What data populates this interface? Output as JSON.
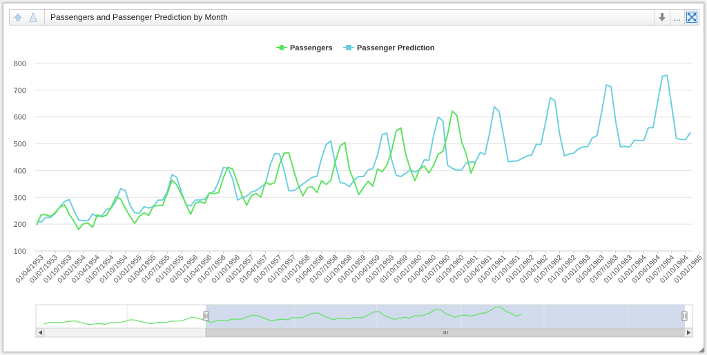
{
  "window": {
    "title": "Passengers and Passenger Prediction by Month",
    "up_icon": "arrow-up-icon",
    "filter_icon": "funnel-icon",
    "download_icon": "download-icon",
    "more_label": "...",
    "maximize_icon": "maximize-icon"
  },
  "colors": {
    "passengers": "#5de35d",
    "prediction": "#6dcfe3",
    "navigator_fill": "#cfd9ea"
  },
  "chart_data": {
    "type": "line",
    "title": "",
    "legend": {
      "placement": "top-center",
      "items": [
        "Passengers",
        "Passenger Prediction"
      ]
    },
    "y_ticks": [
      100,
      200,
      300,
      400,
      500,
      600,
      700,
      800
    ],
    "ylim": [
      100,
      800
    ],
    "x_tick_labels": [
      "01/04/1953",
      "01/07/1953",
      "01/10/1953",
      "01/01/1954",
      "01/04/1954",
      "01/07/1954",
      "01/10/1954",
      "01/01/1955",
      "01/04/1955",
      "01/07/1955",
      "01/10/1955",
      "01/01/1956",
      "01/04/1956",
      "01/07/1956",
      "01/10/1956",
      "01/01/1957",
      "01/04/1957",
      "01/07/1957",
      "01/10/1957",
      "01/01/1958",
      "01/04/1958",
      "01/07/1958",
      "01/10/1958",
      "01/01/1959",
      "01/04/1959",
      "01/07/1959",
      "01/10/1959",
      "01/01/1960",
      "01/04/1960",
      "01/07/1960",
      "01/10/1960",
      "01/01/1961",
      "01/04/1961",
      "01/07/1961",
      "01/10/1961",
      "01/01/1962",
      "01/04/1962",
      "01/07/1962",
      "01/10/1962",
      "01/01/1963",
      "01/04/1963",
      "01/07/1963",
      "01/10/1963",
      "01/01/1964",
      "01/04/1964",
      "01/07/1964",
      "01/10/1964",
      "01/01/1965"
    ],
    "x_start": "03/1953",
    "series": [
      {
        "name": "Passengers",
        "color": "#5de35d",
        "values": [
          196,
          236,
          235,
          229,
          243,
          264,
          272,
          237,
          211,
          180,
          201,
          204,
          188,
          235,
          227,
          234,
          264,
          302,
          293,
          259,
          229,
          203,
          229,
          242,
          233,
          267,
          269,
          270,
          315,
          364,
          347,
          312,
          274,
          237,
          278,
          284,
          277,
          317,
          313,
          318,
          374,
          413,
          405,
          355,
          306,
          271,
          306,
          315,
          301,
          356,
          348,
          355,
          422,
          465,
          467,
          404,
          347,
          305,
          336,
          340,
          318,
          362,
          348,
          363,
          435,
          491,
          505,
          404,
          359,
          310,
          337,
          360,
          342,
          406,
          396,
          420,
          472,
          548,
          559,
          463,
          407,
          362,
          405,
          417,
          391,
          419,
          461,
          472,
          535,
          622,
          606,
          508,
          461,
          390,
          432
        ]
      },
      {
        "name": "Passenger Prediction",
        "color": "#6dcfe3",
        "values": [
          210,
          208,
          225,
          225,
          240,
          265,
          285,
          292,
          250,
          215,
          213,
          212,
          238,
          228,
          232,
          255,
          260,
          287,
          333,
          325,
          270,
          242,
          240,
          265,
          260,
          265,
          290,
          290,
          322,
          385,
          375,
          320,
          272,
          268,
          290,
          290,
          293,
          315,
          322,
          360,
          412,
          408,
          368,
          290,
          298,
          305,
          320,
          325,
          338,
          350,
          420,
          463,
          462,
          400,
          325,
          325,
          335,
          350,
          362,
          375,
          378,
          445,
          497,
          511,
          423,
          355,
          352,
          340,
          365,
          378,
          378,
          402,
          408,
          458,
          534,
          540,
          442,
          382,
          378,
          390,
          402,
          395,
          402,
          440,
          438,
          530,
          600,
          585,
          420,
          408,
          402,
          402,
          428,
          432,
          432,
          468,
          460,
          540,
          638,
          622,
          530,
          433,
          435,
          436,
          446,
          455,
          458,
          498,
          497,
          582,
          672,
          660,
          536,
          455,
          462,
          465,
          480,
          488,
          490,
          522,
          530,
          620,
          720,
          713,
          582,
          489,
          490,
          488,
          513,
          512,
          512,
          560,
          560,
          658,
          752,
          756,
          640,
          520,
          516,
          516,
          543
        ]
      }
    ]
  }
}
